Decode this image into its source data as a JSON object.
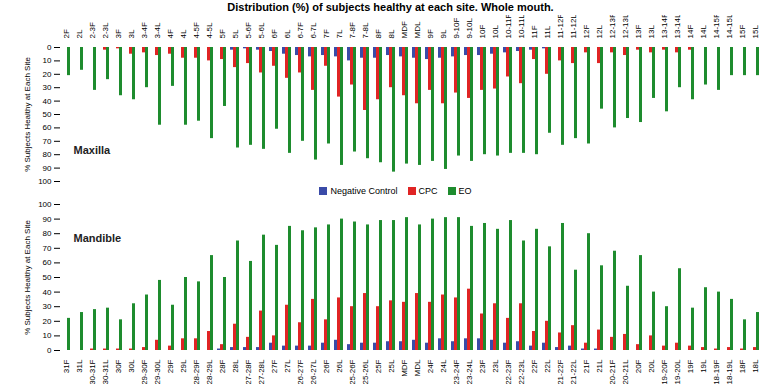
{
  "chart_data": [
    {
      "type": "bar",
      "title": "Distribution (%) of subjects healthy at each site. Whole mouth.",
      "subtitle": "Maxilla",
      "ylabel": "% Subjects Healthy at Each Site",
      "categories": [
        "2F",
        "2L",
        "2-3F",
        "2-3L",
        "3F",
        "3L",
        "3-4F",
        "3-4L",
        "4F",
        "4L",
        "4-5F",
        "4-5L",
        "5F",
        "5L",
        "5-6F",
        "5-6L",
        "6F",
        "6L",
        "6-7F",
        "6-7L",
        "7F",
        "7L",
        "7-8F",
        "7-8L",
        "8F",
        "8L",
        "MDF",
        "MDL",
        "9F",
        "9L",
        "9-10F",
        "9-10L",
        "10F",
        "10L",
        "10-11F",
        "10-11L",
        "11F",
        "11L",
        "11-12F",
        "11-12L",
        "12F",
        "12L",
        "12-13F",
        "12-13L",
        "13F",
        "13L",
        "13-14F",
        "13-14L",
        "14F",
        "14L",
        "14-15F",
        "14-15L",
        "15F",
        "15L"
      ],
      "series": [
        {
          "name": "Negative Control",
          "color": "#3a4ba8",
          "values": [
            0,
            0,
            0,
            0,
            0,
            0,
            0,
            0,
            0,
            0,
            0,
            0,
            0,
            2,
            1,
            2,
            3,
            5,
            6,
            7,
            6,
            7,
            10,
            8,
            8,
            6,
            7,
            8,
            9,
            8,
            7,
            6,
            6,
            5,
            4,
            3,
            2,
            1,
            0,
            0,
            0,
            0,
            0,
            0,
            0,
            0,
            0,
            0,
            0,
            0,
            0,
            0,
            0,
            0
          ]
        },
        {
          "name": "CPC",
          "color": "#e02424",
          "values": [
            0,
            0,
            0,
            2,
            1,
            5,
            4,
            6,
            5,
            8,
            8,
            10,
            9,
            15,
            12,
            19,
            14,
            23,
            19,
            32,
            14,
            37,
            28,
            47,
            39,
            30,
            36,
            42,
            32,
            42,
            34,
            38,
            32,
            31,
            22,
            27,
            9,
            20,
            10,
            12,
            4,
            12,
            4,
            6,
            2,
            4,
            2,
            4,
            2,
            0,
            0,
            0,
            0,
            0
          ]
        },
        {
          "name": "EO",
          "color": "#1e8c2e",
          "values": [
            21,
            17,
            32,
            24,
            36,
            39,
            30,
            58,
            29,
            58,
            55,
            68,
            44,
            75,
            73,
            76,
            61,
            79,
            70,
            84,
            72,
            88,
            78,
            83,
            86,
            93,
            87,
            88,
            85,
            91,
            81,
            85,
            80,
            81,
            79,
            79,
            80,
            64,
            73,
            68,
            72,
            46,
            60,
            53,
            56,
            38,
            48,
            30,
            39,
            28,
            32,
            21,
            21,
            21
          ]
        }
      ],
      "ylim": [
        100,
        0
      ],
      "yticks": [
        0,
        10,
        20,
        30,
        40,
        50,
        60,
        70,
        80,
        90,
        100
      ],
      "grid": false
    },
    {
      "type": "bar",
      "subtitle": "Mandible",
      "ylabel": "% Subjects Healthy at Each Site",
      "categories": [
        "31F",
        "31L",
        "30-31F",
        "30-31L",
        "30F",
        "30L",
        "29-30F",
        "29-30L",
        "29F",
        "29L",
        "28-29F",
        "28-29L",
        "28F",
        "28L",
        "27-28F",
        "27-28L",
        "27F",
        "27L",
        "26-27F",
        "26-27L",
        "26F",
        "26L",
        "25-26F",
        "25-26L",
        "25F",
        "25L",
        "MDF",
        "MDL",
        "24F",
        "24L",
        "23-24F",
        "23-24L",
        "23F",
        "23L",
        "22-23F",
        "22-23L",
        "22F",
        "22L",
        "21-22F",
        "21-22L",
        "21F",
        "21L",
        "20-21F",
        "20-21L",
        "20F",
        "20L",
        "19-20F",
        "19-20L",
        "19F",
        "19L",
        "18-19F",
        "18-19L",
        "18F",
        "18L"
      ],
      "series": [
        {
          "name": "Negative Control",
          "color": "#3a4ba8",
          "values": [
            0,
            0,
            0,
            0,
            0,
            0,
            0,
            0,
            0,
            0,
            0,
            0,
            1,
            2,
            2,
            2,
            5,
            3,
            3,
            3,
            5,
            7,
            4,
            5,
            5,
            6,
            6,
            7,
            5,
            8,
            6,
            8,
            8,
            7,
            5,
            6,
            3,
            5,
            2,
            3,
            1,
            1,
            0,
            0,
            0,
            0,
            0,
            0,
            0,
            0,
            0,
            0,
            0,
            0
          ]
        },
        {
          "name": "CPC",
          "color": "#e02424",
          "values": [
            0,
            0,
            1,
            1,
            1,
            1,
            2,
            7,
            3,
            8,
            8,
            13,
            4,
            18,
            9,
            27,
            10,
            31,
            19,
            35,
            21,
            36,
            30,
            39,
            30,
            34,
            33,
            39,
            33,
            38,
            36,
            42,
            25,
            32,
            22,
            32,
            13,
            20,
            12,
            17,
            5,
            14,
            9,
            11,
            4,
            10,
            3,
            5,
            3,
            2,
            1,
            2,
            1,
            2
          ]
        },
        {
          "name": "EO",
          "color": "#1e8c2e",
          "values": [
            22,
            26,
            28,
            29,
            21,
            32,
            38,
            48,
            31,
            50,
            47,
            65,
            50,
            75,
            61,
            79,
            72,
            85,
            82,
            84,
            86,
            90,
            88,
            86,
            89,
            89,
            91,
            86,
            90,
            91,
            91,
            85,
            87,
            83,
            89,
            75,
            83,
            71,
            87,
            55,
            80,
            58,
            68,
            44,
            65,
            40,
            30,
            56,
            29,
            43,
            40,
            35,
            21,
            26
          ]
        }
      ],
      "ylim": [
        0,
        100
      ],
      "yticks": [
        0,
        10,
        20,
        30,
        40,
        50,
        60,
        70,
        80,
        90,
        100
      ],
      "grid": false,
      "legend": "top"
    }
  ]
}
